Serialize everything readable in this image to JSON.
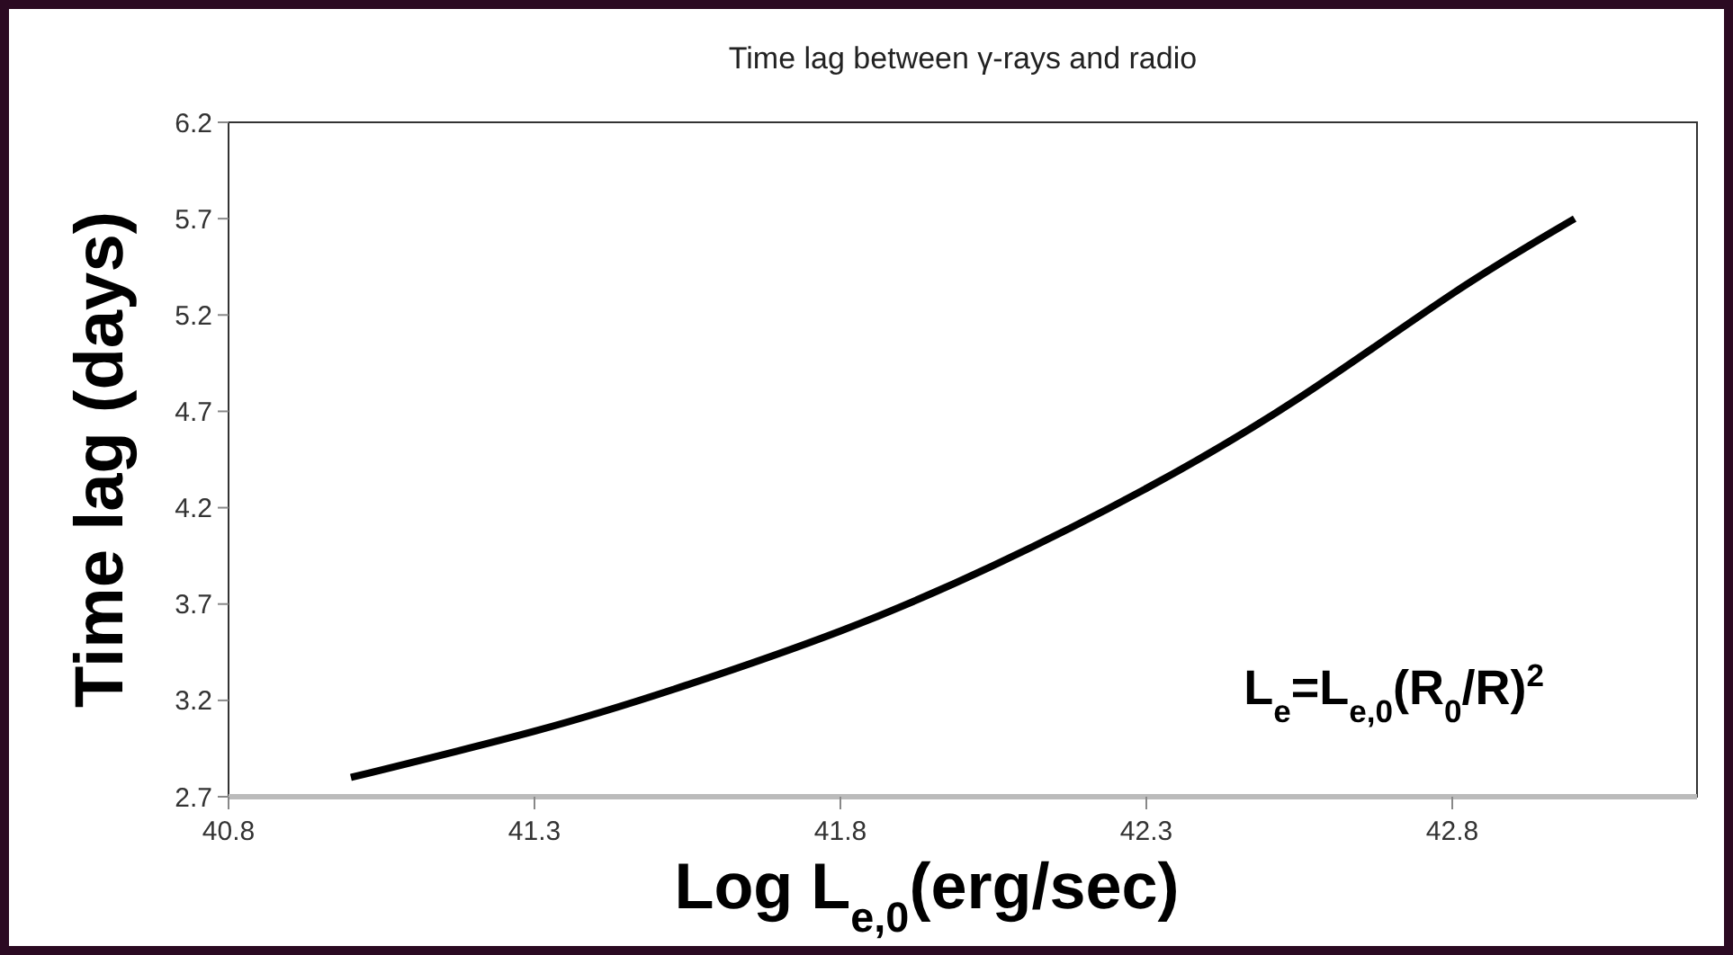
{
  "chart_data": {
    "type": "line",
    "title": "Time lag between γ-rays and radio",
    "xlabel": "Log L$_{e,0}$(erg/sec)",
    "ylabel": "Time lag (days)",
    "annotations": [
      "L$_{e}$=L$_{e,0}$(R$_{0}$/R)$^{2}$"
    ],
    "x": [
      41.0,
      41.3,
      41.53,
      41.8,
      42.05,
      42.3,
      42.55,
      42.8,
      43.0
    ],
    "series": [
      {
        "color": "#000000",
        "values": [
          2.8,
          3.04,
          3.26,
          3.56,
          3.9,
          4.3,
          4.77,
          5.31,
          5.7
        ]
      }
    ],
    "xlim": [
      40.8,
      43.2
    ],
    "ylim": [
      2.7,
      6.2
    ],
    "xticks": [
      40.8,
      41.3,
      41.8,
      42.3,
      42.8
    ],
    "yticks": [
      2.7,
      3.2,
      3.7,
      4.2,
      4.7,
      5.2,
      5.7,
      6.2
    ],
    "grid": false,
    "marker": "none",
    "line_style": "solid"
  }
}
